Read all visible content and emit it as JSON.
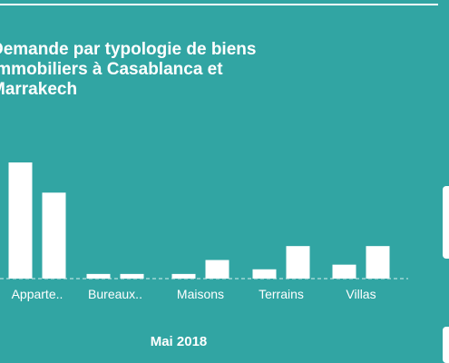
{
  "chart_data": {
    "type": "bar",
    "title_lines": [
      "Demande par typologie de biens",
      "immobiliers à Casablanca et",
      "Marrakech"
    ],
    "categories": [
      "Apparte..",
      "Bureaux..",
      "Maisons",
      "Terrains",
      "Villas"
    ],
    "series": [
      {
        "values": [
          100,
          4,
          4,
          8,
          12
        ]
      },
      {
        "values": [
          74,
          4,
          16,
          28,
          28
        ]
      }
    ],
    "xlabel": "Mai 2018",
    "ylabel": "",
    "ylim": [
      0,
      100
    ],
    "grid": false,
    "legend": "none",
    "colors": {
      "background": "#31a5a3",
      "bars": "#ffffff",
      "baseline": "#d9eeee"
    }
  }
}
